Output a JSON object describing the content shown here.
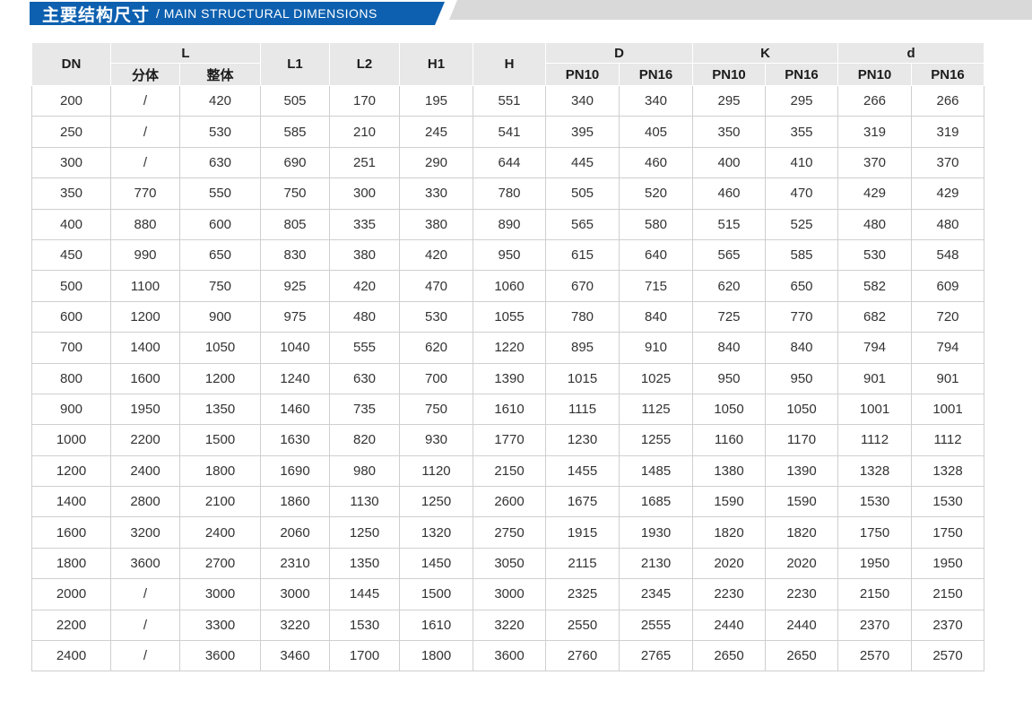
{
  "banner": {
    "title_zh": "主要结构尺寸",
    "title_en": "/ MAIN STRUCTURAL DIMENSIONS"
  },
  "colors": {
    "banner_blue": "#0d60af",
    "strip_gray": "#d9d9d9",
    "header_bg": "#e8e8e8",
    "grid_line": "#cfcfcf",
    "text_dark": "#333333"
  },
  "table": {
    "headers": {
      "dn": "DN",
      "l": "L",
      "l_split": "分体",
      "l_whole": "整体",
      "l1": "L1",
      "l2": "L2",
      "h1": "H1",
      "h": "H",
      "d_upper": "D",
      "k": "K",
      "d_lower": "d",
      "pn10": "PN10",
      "pn16": "PN16"
    },
    "rows": [
      [
        "200",
        "/",
        "420",
        "505",
        "170",
        "195",
        "551",
        "340",
        "340",
        "295",
        "295",
        "266",
        "266"
      ],
      [
        "250",
        "/",
        "530",
        "585",
        "210",
        "245",
        "541",
        "395",
        "405",
        "350",
        "355",
        "319",
        "319"
      ],
      [
        "300",
        "/",
        "630",
        "690",
        "251",
        "290",
        "644",
        "445",
        "460",
        "400",
        "410",
        "370",
        "370"
      ],
      [
        "350",
        "770",
        "550",
        "750",
        "300",
        "330",
        "780",
        "505",
        "520",
        "460",
        "470",
        "429",
        "429"
      ],
      [
        "400",
        "880",
        "600",
        "805",
        "335",
        "380",
        "890",
        "565",
        "580",
        "515",
        "525",
        "480",
        "480"
      ],
      [
        "450",
        "990",
        "650",
        "830",
        "380",
        "420",
        "950",
        "615",
        "640",
        "565",
        "585",
        "530",
        "548"
      ],
      [
        "500",
        "1100",
        "750",
        "925",
        "420",
        "470",
        "1060",
        "670",
        "715",
        "620",
        "650",
        "582",
        "609"
      ],
      [
        "600",
        "1200",
        "900",
        "975",
        "480",
        "530",
        "1055",
        "780",
        "840",
        "725",
        "770",
        "682",
        "720"
      ],
      [
        "700",
        "1400",
        "1050",
        "1040",
        "555",
        "620",
        "1220",
        "895",
        "910",
        "840",
        "840",
        "794",
        "794"
      ],
      [
        "800",
        "1600",
        "1200",
        "1240",
        "630",
        "700",
        "1390",
        "1015",
        "1025",
        "950",
        "950",
        "901",
        "901"
      ],
      [
        "900",
        "1950",
        "1350",
        "1460",
        "735",
        "750",
        "1610",
        "1115",
        "1125",
        "1050",
        "1050",
        "1001",
        "1001"
      ],
      [
        "1000",
        "2200",
        "1500",
        "1630",
        "820",
        "930",
        "1770",
        "1230",
        "1255",
        "1160",
        "1170",
        "1112",
        "1112"
      ],
      [
        "1200",
        "2400",
        "1800",
        "1690",
        "980",
        "1120",
        "2150",
        "1455",
        "1485",
        "1380",
        "1390",
        "1328",
        "1328"
      ],
      [
        "1400",
        "2800",
        "2100",
        "1860",
        "1130",
        "1250",
        "2600",
        "1675",
        "1685",
        "1590",
        "1590",
        "1530",
        "1530"
      ],
      [
        "1600",
        "3200",
        "2400",
        "2060",
        "1250",
        "1320",
        "2750",
        "1915",
        "1930",
        "1820",
        "1820",
        "1750",
        "1750"
      ],
      [
        "1800",
        "3600",
        "2700",
        "2310",
        "1350",
        "1450",
        "3050",
        "2115",
        "2130",
        "2020",
        "2020",
        "1950",
        "1950"
      ],
      [
        "2000",
        "/",
        "3000",
        "3000",
        "1445",
        "1500",
        "3000",
        "2325",
        "2345",
        "2230",
        "2230",
        "2150",
        "2150"
      ],
      [
        "2200",
        "/",
        "3300",
        "3220",
        "1530",
        "1610",
        "3220",
        "2550",
        "2555",
        "2440",
        "2440",
        "2370",
        "2370"
      ],
      [
        "2400",
        "/",
        "3600",
        "3460",
        "1700",
        "1800",
        "3600",
        "2760",
        "2765",
        "2650",
        "2650",
        "2570",
        "2570"
      ]
    ]
  }
}
